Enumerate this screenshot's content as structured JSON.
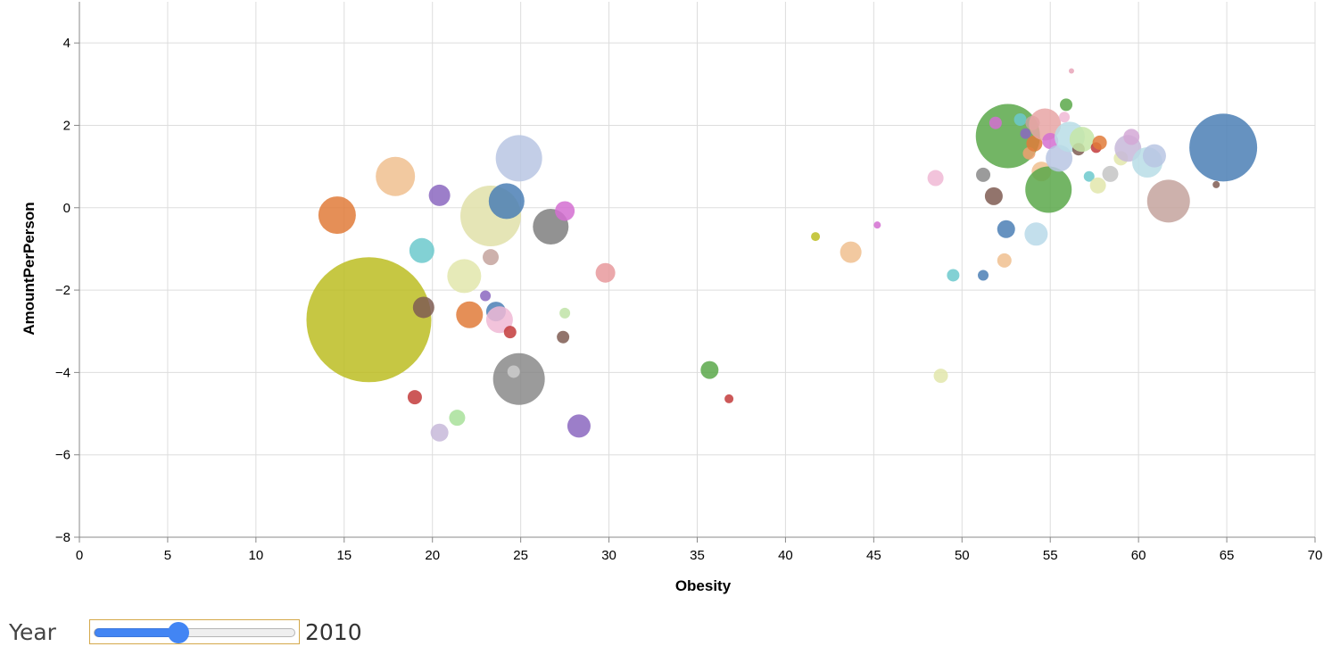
{
  "chart_data": {
    "type": "scatter",
    "xlabel": "Obesity",
    "ylabel": "AmountPerPerson",
    "xlim": [
      0,
      70
    ],
    "ylim": [
      -8,
      5
    ],
    "x_ticks": [
      0,
      5,
      10,
      15,
      20,
      25,
      30,
      35,
      40,
      45,
      50,
      55,
      60,
      65,
      70
    ],
    "y_ticks": [
      -8,
      -6,
      -4,
      -2,
      0,
      2,
      4
    ],
    "y_tick_labels": [
      "−8",
      "−6",
      "−4",
      "−2",
      "0",
      "2",
      "4"
    ],
    "grid": true,
    "points": [
      {
        "x": 16.4,
        "y": -2.72,
        "size": 70,
        "color": "#bcbd22"
      },
      {
        "x": 14.6,
        "y": -0.18,
        "size": 21,
        "color": "#e07b39"
      },
      {
        "x": 17.9,
        "y": 0.76,
        "size": 22,
        "color": "#f0c08f"
      },
      {
        "x": 19.4,
        "y": -1.04,
        "size": 14,
        "color": "#6cc9cc"
      },
      {
        "x": 19.5,
        "y": -2.42,
        "size": 12,
        "color": "#7f5c52"
      },
      {
        "x": 19.0,
        "y": -4.6,
        "size": 8,
        "color": "#c33b3b"
      },
      {
        "x": 20.4,
        "y": 0.3,
        "size": 12,
        "color": "#8b67bf"
      },
      {
        "x": 20.4,
        "y": -5.46,
        "size": 10,
        "color": "#c7b9d9"
      },
      {
        "x": 21.4,
        "y": -5.1,
        "size": 9,
        "color": "#a8e19a"
      },
      {
        "x": 21.8,
        "y": -1.66,
        "size": 19,
        "color": "#e2e6ac"
      },
      {
        "x": 22.1,
        "y": -2.6,
        "size": 15,
        "color": "#e07b39"
      },
      {
        "x": 23.0,
        "y": -2.14,
        "size": 6,
        "color": "#8b67bf"
      },
      {
        "x": 23.3,
        "y": -1.2,
        "size": 9,
        "color": "#c4a39e"
      },
      {
        "x": 23.3,
        "y": -0.2,
        "size": 34,
        "color": "#e0e0a9"
      },
      {
        "x": 23.6,
        "y": -2.52,
        "size": 11,
        "color": "#4b7fb5"
      },
      {
        "x": 23.8,
        "y": -2.72,
        "size": 15,
        "color": "#f0b9d5"
      },
      {
        "x": 24.4,
        "y": -3.02,
        "size": 7,
        "color": "#c33b3b"
      },
      {
        "x": 24.2,
        "y": 0.16,
        "size": 20,
        "color": "#4b7fb5"
      },
      {
        "x": 24.9,
        "y": 1.2,
        "size": 26,
        "color": "#b8c6e3"
      },
      {
        "x": 24.9,
        "y": -4.16,
        "size": 29,
        "color": "#8a8a8a"
      },
      {
        "x": 24.6,
        "y": -3.98,
        "size": 7,
        "color": "#cccccc"
      },
      {
        "x": 26.7,
        "y": -0.46,
        "size": 20,
        "color": "#7f7f7f"
      },
      {
        "x": 27.5,
        "y": -0.08,
        "size": 11,
        "color": "#d46ed1"
      },
      {
        "x": 27.5,
        "y": -2.56,
        "size": 6,
        "color": "#bfe3a7"
      },
      {
        "x": 27.4,
        "y": -3.14,
        "size": 7,
        "color": "#7f5c52"
      },
      {
        "x": 28.3,
        "y": -5.3,
        "size": 13,
        "color": "#8b67bf"
      },
      {
        "x": 29.8,
        "y": -1.58,
        "size": 11,
        "color": "#e8999c"
      },
      {
        "x": 35.7,
        "y": -3.94,
        "size": 10,
        "color": "#5aa84a"
      },
      {
        "x": 36.8,
        "y": -4.64,
        "size": 5,
        "color": "#c33b3b"
      },
      {
        "x": 41.7,
        "y": -0.7,
        "size": 5,
        "color": "#bcbd22"
      },
      {
        "x": 43.7,
        "y": -1.08,
        "size": 12,
        "color": "#f0c08f"
      },
      {
        "x": 45.2,
        "y": -0.42,
        "size": 4,
        "color": "#d46ed1"
      },
      {
        "x": 48.5,
        "y": 0.72,
        "size": 9,
        "color": "#f0b9d5"
      },
      {
        "x": 48.8,
        "y": -4.08,
        "size": 8,
        "color": "#e2e6ac"
      },
      {
        "x": 49.5,
        "y": -1.64,
        "size": 7,
        "color": "#6cc9cc"
      },
      {
        "x": 51.2,
        "y": -1.64,
        "size": 6,
        "color": "#4b7fb5"
      },
      {
        "x": 51.2,
        "y": 0.8,
        "size": 8,
        "color": "#8a8a8a"
      },
      {
        "x": 51.8,
        "y": 0.28,
        "size": 10,
        "color": "#7f5c52"
      },
      {
        "x": 52.5,
        "y": -0.52,
        "size": 10,
        "color": "#4b7fb5"
      },
      {
        "x": 52.4,
        "y": -1.28,
        "size": 8,
        "color": "#f0c08f"
      },
      {
        "x": 52.6,
        "y": 1.74,
        "size": 36,
        "color": "#5aa84a"
      },
      {
        "x": 51.9,
        "y": 2.06,
        "size": 7,
        "color": "#d46ed1"
      },
      {
        "x": 53.3,
        "y": 2.14,
        "size": 7,
        "color": "#6cc9cc"
      },
      {
        "x": 53.6,
        "y": 1.8,
        "size": 6,
        "color": "#8b67bf"
      },
      {
        "x": 53.8,
        "y": 1.32,
        "size": 7,
        "color": "#f0a070"
      },
      {
        "x": 54.1,
        "y": 1.56,
        "size": 9,
        "color": "#e07b39"
      },
      {
        "x": 54.0,
        "y": 2.06,
        "size": 8,
        "color": "#c4a39e"
      },
      {
        "x": 54.2,
        "y": -0.64,
        "size": 13,
        "color": "#b8d9e9"
      },
      {
        "x": 54.5,
        "y": 0.88,
        "size": 11,
        "color": "#f0c08f"
      },
      {
        "x": 54.7,
        "y": 2.02,
        "size": 18,
        "color": "#e8a4a4"
      },
      {
        "x": 54.9,
        "y": 0.44,
        "size": 26,
        "color": "#5aa84a"
      },
      {
        "x": 55.0,
        "y": 1.62,
        "size": 9,
        "color": "#d46ed1"
      },
      {
        "x": 55.5,
        "y": 1.2,
        "size": 15,
        "color": "#b8c6e3"
      },
      {
        "x": 55.8,
        "y": 2.2,
        "size": 6,
        "color": "#f0b9d5"
      },
      {
        "x": 55.9,
        "y": 2.5,
        "size": 7,
        "color": "#5aa84a"
      },
      {
        "x": 56.1,
        "y": 1.72,
        "size": 17,
        "color": "#b8dde6"
      },
      {
        "x": 56.2,
        "y": 3.32,
        "size": 3,
        "color": "#e8a4b8"
      },
      {
        "x": 56.6,
        "y": 1.42,
        "size": 7,
        "color": "#7f5c52"
      },
      {
        "x": 56.8,
        "y": 1.66,
        "size": 14,
        "color": "#c5e6a7"
      },
      {
        "x": 57.2,
        "y": 0.76,
        "size": 6,
        "color": "#6cc9cc"
      },
      {
        "x": 57.6,
        "y": 1.46,
        "size": 6,
        "color": "#c33b3b"
      },
      {
        "x": 57.7,
        "y": 0.54,
        "size": 9,
        "color": "#e2e6ac"
      },
      {
        "x": 57.8,
        "y": 1.58,
        "size": 8,
        "color": "#e07b39"
      },
      {
        "x": 58.4,
        "y": 0.82,
        "size": 9,
        "color": "#c4c4c4"
      },
      {
        "x": 59.0,
        "y": 1.2,
        "size": 8,
        "color": "#e2e6ac"
      },
      {
        "x": 59.4,
        "y": 1.44,
        "size": 15,
        "color": "#c7b9d9"
      },
      {
        "x": 59.6,
        "y": 1.72,
        "size": 9,
        "color": "#d4a8d6"
      },
      {
        "x": 60.5,
        "y": 1.1,
        "size": 17,
        "color": "#b8dde6"
      },
      {
        "x": 60.9,
        "y": 1.26,
        "size": 13,
        "color": "#b8c6e3"
      },
      {
        "x": 61.7,
        "y": 0.16,
        "size": 24,
        "color": "#c4a39e"
      },
      {
        "x": 64.4,
        "y": 0.56,
        "size": 4,
        "color": "#7f5c52"
      },
      {
        "x": 64.8,
        "y": 1.46,
        "size": 38,
        "color": "#4b7fb5"
      }
    ]
  },
  "controls": {
    "year_label": "Year",
    "year_value": "2010",
    "year_slider_position": 0.42
  }
}
